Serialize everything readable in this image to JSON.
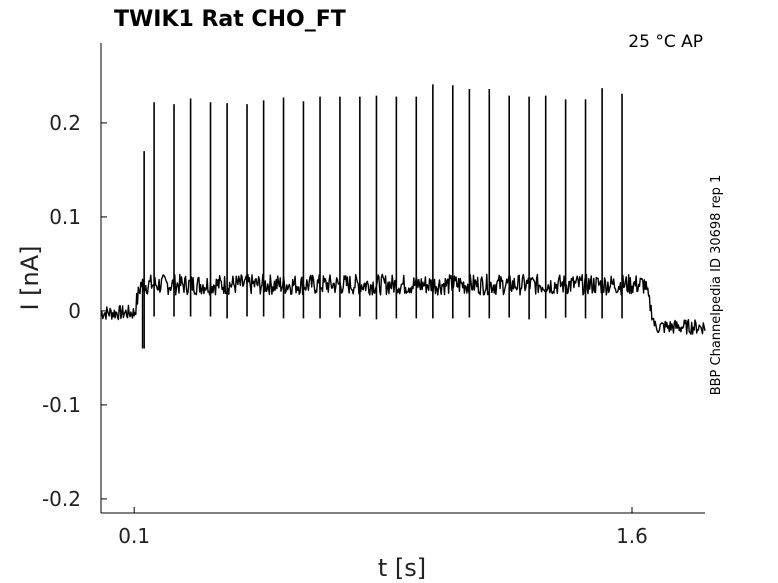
{
  "chart_data": {
    "type": "line",
    "title": "TWIK1  Rat  CHO_FT",
    "annotation": "25 °C  AP",
    "side_note": "BBP Channelpedia ID 30698 rep 1",
    "xlabel": "t [s]",
    "ylabel": "I [nA]",
    "xlim": [
      0.0,
      1.82
    ],
    "ylim": [
      -0.215,
      0.285
    ],
    "x_ticks": [
      {
        "value": 0.1,
        "label": "0.1"
      },
      {
        "value": 1.6,
        "label": "1.6"
      }
    ],
    "y_ticks": [
      {
        "value": 0.2,
        "label": "0.2"
      },
      {
        "value": 0.1,
        "label": "0.1"
      },
      {
        "value": 0.0,
        "label": "0"
      },
      {
        "value": -0.1,
        "label": "-0.1"
      },
      {
        "value": -0.2,
        "label": "-0.2"
      }
    ],
    "grid": false,
    "line_color": "#000000",
    "series": [
      {
        "baseline_before": -0.002,
        "baseline_during": 0.028,
        "baseline_after": -0.017,
        "step_on": 0.1,
        "step_off": 1.64,
        "spike_times": [
          0.13,
          0.16,
          0.22,
          0.27,
          0.33,
          0.38,
          0.44,
          0.49,
          0.55,
          0.61,
          0.66,
          0.72,
          0.78,
          0.83,
          0.89,
          0.95,
          1.0,
          1.06,
          1.11,
          1.17,
          1.23,
          1.29,
          1.34,
          1.4,
          1.46,
          1.51,
          1.57
        ],
        "spike_peaks": [
          0.17,
          0.222,
          0.22,
          0.226,
          0.222,
          0.221,
          0.22,
          0.224,
          0.227,
          0.223,
          0.228,
          0.228,
          0.228,
          0.229,
          0.228,
          0.228,
          0.241,
          0.24,
          0.236,
          0.236,
          0.229,
          0.228,
          0.229,
          0.225,
          0.225,
          0.237,
          0.231
        ],
        "spike_troughs": [
          -0.04,
          -0.006,
          -0.006,
          -0.006,
          -0.006,
          -0.008,
          -0.006,
          -0.006,
          -0.008,
          -0.008,
          -0.008,
          -0.007,
          -0.006,
          -0.009,
          -0.008,
          -0.008,
          -0.008,
          -0.008,
          -0.007,
          -0.008,
          -0.007,
          -0.009,
          -0.008,
          -0.007,
          -0.008,
          -0.008,
          -0.008
        ]
      }
    ]
  }
}
